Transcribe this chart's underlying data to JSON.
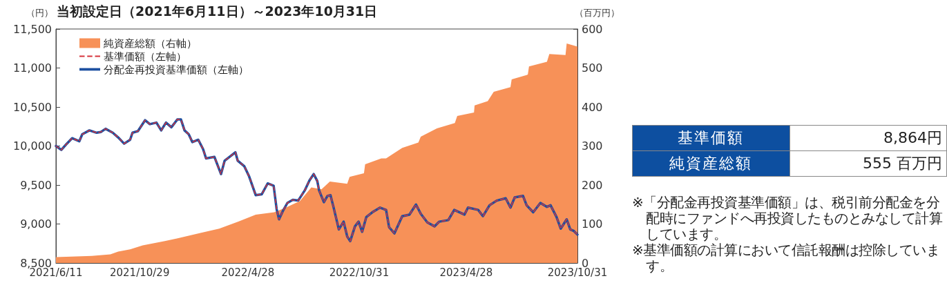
{
  "chart_data": {
    "type": "line",
    "title": "当初設定日（2021年6月11日）～2023年10月31日",
    "ylabel": "（円）",
    "y2label": "（百万円）",
    "xlim": [
      "2021-06-11",
      "2023-10-31"
    ],
    "xticks": [
      {
        "value": "2021-06-11",
        "label": "2021/6/11"
      },
      {
        "value": "2021-10-29",
        "label": "2021/10/29"
      },
      {
        "value": "2022-04-28",
        "label": "2022/4/28"
      },
      {
        "value": "2022-10-31",
        "label": "2022/10/31"
      },
      {
        "value": "2023-04-28",
        "label": "2023/4/28"
      },
      {
        "value": "2023-10-31",
        "label": "2023/10/31"
      }
    ],
    "ylim": [
      8500,
      11500
    ],
    "yticks": [
      {
        "value": 8500,
        "label": "8,500"
      },
      {
        "value": 9000,
        "label": "9,000"
      },
      {
        "value": 9500,
        "label": "9,500"
      },
      {
        "value": 10000,
        "label": "10,000"
      },
      {
        "value": 10500,
        "label": "10,500"
      },
      {
        "value": 11000,
        "label": "11,000"
      },
      {
        "value": 11500,
        "label": "11,500"
      }
    ],
    "y2lim": [
      0,
      600
    ],
    "y2ticks": [
      0,
      100,
      200,
      300,
      400,
      500,
      600
    ],
    "grid": false,
    "legend": "top left",
    "marker": "none",
    "series": [
      {
        "name": "純資産総額（右軸）",
        "type": "area",
        "axis": "y2",
        "color": "#f79158",
        "x": [
          "2021-06-11",
          "2021-08-10",
          "2021-09-10",
          "2021-09-23",
          "2021-10-13",
          "2021-11-03",
          "2021-12-10",
          "2022-01-14",
          "2022-02-10",
          "2022-03-11",
          "2022-04-12",
          "2022-05-11",
          "2022-06-11",
          "2022-06-29",
          "2022-07-24",
          "2022-08-12",
          "2022-08-29",
          "2022-09-12",
          "2022-10-11",
          "2022-10-15",
          "2022-11-08",
          "2022-11-10",
          "2022-12-07",
          "2022-12-15",
          "2023-01-11",
          "2023-02-07",
          "2023-02-11",
          "2023-03-10",
          "2023-04-09",
          "2023-04-13",
          "2023-05-11",
          "2023-05-12",
          "2023-06-03",
          "2023-06-13",
          "2023-07-11",
          "2023-07-13",
          "2023-08-09",
          "2023-08-11",
          "2023-09-10",
          "2023-09-14",
          "2023-10-11",
          "2023-10-13",
          "2023-10-31"
        ],
        "values": [
          15,
          18,
          22,
          29,
          35,
          45,
          56,
          68,
          78,
          88,
          106,
          124,
          130,
          141,
          159,
          194,
          189,
          209,
          203,
          221,
          230,
          253,
          268,
          268,
          295,
          309,
          324,
          345,
          359,
          377,
          386,
          404,
          415,
          439,
          451,
          471,
          483,
          504,
          516,
          536,
          533,
          563,
          555
        ]
      },
      {
        "name": "基準価額（左軸）",
        "line_style": "dashed",
        "color": "#d6333b",
        "x": [
          "2021-06-11",
          "2021-06-20",
          "2021-06-28",
          "2021-07-08",
          "2021-07-20",
          "2021-07-25",
          "2021-08-06",
          "2021-08-18",
          "2021-08-25",
          "2021-09-02",
          "2021-09-14",
          "2021-09-23",
          "2021-10-03",
          "2021-10-13",
          "2021-10-17",
          "2021-10-26",
          "2021-11-07",
          "2021-11-15",
          "2021-11-26",
          "2021-12-04",
          "2021-12-12",
          "2021-12-21",
          "2021-12-31",
          "2022-01-06",
          "2022-01-12",
          "2022-01-19",
          "2022-01-25",
          "2022-02-04",
          "2022-02-12",
          "2022-02-17",
          "2022-03-03",
          "2022-03-14",
          "2022-03-20",
          "2022-03-30",
          "2022-04-07",
          "2022-04-11",
          "2022-04-22",
          "2022-04-30",
          "2022-05-11",
          "2022-05-21",
          "2022-05-31",
          "2022-06-10",
          "2022-06-15",
          "2022-06-19",
          "2022-06-25",
          "2022-07-03",
          "2022-07-12",
          "2022-07-21",
          "2022-08-01",
          "2022-08-09",
          "2022-08-16",
          "2022-08-22",
          "2022-08-25",
          "2022-09-02",
          "2022-09-08",
          "2022-09-13",
          "2022-09-18",
          "2022-09-27",
          "2022-10-05",
          "2022-10-11",
          "2022-10-16",
          "2022-10-24",
          "2022-10-30",
          "2022-11-05",
          "2022-11-12",
          "2022-11-22",
          "2022-12-05",
          "2022-12-15",
          "2022-12-20",
          "2022-12-29",
          "2023-01-11",
          "2023-01-23",
          "2023-02-03",
          "2023-02-11",
          "2023-02-22",
          "2023-03-06",
          "2023-03-14",
          "2023-03-29",
          "2023-04-08",
          "2023-04-25",
          "2023-05-01",
          "2023-05-18",
          "2023-05-26",
          "2023-06-06",
          "2023-06-18",
          "2023-07-03",
          "2023-07-11",
          "2023-07-18",
          "2023-08-01",
          "2023-08-07",
          "2023-08-18",
          "2023-08-30",
          "2023-09-10",
          "2023-09-16",
          "2023-09-26",
          "2023-10-03",
          "2023-10-13",
          "2023-10-19",
          "2023-10-25",
          "2023-10-31"
        ],
        "values": [
          10000,
          9950,
          10020,
          10100,
          10060,
          10150,
          10200,
          10170,
          10180,
          10220,
          10170,
          10110,
          10030,
          10080,
          10170,
          10190,
          10330,
          10280,
          10300,
          10200,
          10300,
          10240,
          10340,
          10340,
          10200,
          10150,
          10050,
          10080,
          9960,
          9840,
          9860,
          9640,
          9810,
          9870,
          9920,
          9810,
          9740,
          9610,
          9370,
          9380,
          9520,
          9490,
          9190,
          9060,
          9160,
          9270,
          9310,
          9300,
          9430,
          9560,
          9640,
          9550,
          9430,
          9280,
          9360,
          9370,
          9220,
          8930,
          9030,
          8840,
          8780,
          8970,
          9030,
          8900,
          9090,
          9150,
          9210,
          9180,
          8960,
          8880,
          9100,
          9120,
          9250,
          9130,
          9020,
          8970,
          9030,
          9050,
          9180,
          9120,
          9210,
          9180,
          9100,
          9240,
          9300,
          9330,
          9210,
          9340,
          9360,
          9240,
          9150,
          9270,
          9220,
          9240,
          9090,
          8940,
          9060,
          8930,
          8910,
          8864
        ]
      },
      {
        "name": "分配金再投資基準価額（左軸）",
        "line_style": "solid",
        "color": "#1c4fa0",
        "x": [
          "2021-06-11",
          "2021-06-20",
          "2021-06-28",
          "2021-07-08",
          "2021-07-20",
          "2021-07-25",
          "2021-08-06",
          "2021-08-18",
          "2021-08-25",
          "2021-09-02",
          "2021-09-14",
          "2021-09-23",
          "2021-10-03",
          "2021-10-13",
          "2021-10-17",
          "2021-10-26",
          "2021-11-07",
          "2021-11-15",
          "2021-11-26",
          "2021-12-04",
          "2021-12-12",
          "2021-12-21",
          "2021-12-31",
          "2022-01-06",
          "2022-01-12",
          "2022-01-19",
          "2022-01-25",
          "2022-02-04",
          "2022-02-12",
          "2022-02-17",
          "2022-03-03",
          "2022-03-14",
          "2022-03-20",
          "2022-03-30",
          "2022-04-07",
          "2022-04-11",
          "2022-04-22",
          "2022-04-30",
          "2022-05-11",
          "2022-05-21",
          "2022-05-31",
          "2022-06-10",
          "2022-06-15",
          "2022-06-19",
          "2022-06-25",
          "2022-07-03",
          "2022-07-12",
          "2022-07-21",
          "2022-08-01",
          "2022-08-09",
          "2022-08-16",
          "2022-08-22",
          "2022-08-25",
          "2022-09-02",
          "2022-09-08",
          "2022-09-13",
          "2022-09-18",
          "2022-09-27",
          "2022-10-05",
          "2022-10-11",
          "2022-10-16",
          "2022-10-24",
          "2022-10-30",
          "2022-11-05",
          "2022-11-12",
          "2022-11-22",
          "2022-12-05",
          "2022-12-15",
          "2022-12-20",
          "2022-12-29",
          "2023-01-11",
          "2023-01-23",
          "2023-02-03",
          "2023-02-11",
          "2023-02-22",
          "2023-03-06",
          "2023-03-14",
          "2023-03-29",
          "2023-04-08",
          "2023-04-25",
          "2023-05-01",
          "2023-05-18",
          "2023-05-26",
          "2023-06-06",
          "2023-06-18",
          "2023-07-03",
          "2023-07-11",
          "2023-07-18",
          "2023-08-01",
          "2023-08-07",
          "2023-08-18",
          "2023-08-30",
          "2023-09-10",
          "2023-09-16",
          "2023-09-26",
          "2023-10-03",
          "2023-10-13",
          "2023-10-19",
          "2023-10-25",
          "2023-10-31"
        ],
        "values": [
          10000,
          9950,
          10020,
          10100,
          10060,
          10150,
          10200,
          10170,
          10180,
          10220,
          10170,
          10110,
          10030,
          10080,
          10170,
          10190,
          10330,
          10280,
          10300,
          10200,
          10300,
          10240,
          10340,
          10340,
          10200,
          10150,
          10050,
          10080,
          9960,
          9840,
          9860,
          9640,
          9810,
          9870,
          9920,
          9810,
          9740,
          9610,
          9370,
          9380,
          9520,
          9490,
          9190,
          9060,
          9160,
          9270,
          9310,
          9300,
          9430,
          9560,
          9640,
          9550,
          9430,
          9280,
          9360,
          9370,
          9220,
          8930,
          9030,
          8840,
          8780,
          8970,
          9030,
          8900,
          9090,
          9150,
          9210,
          9180,
          8960,
          8880,
          9100,
          9120,
          9250,
          9130,
          9020,
          8970,
          9030,
          9050,
          9180,
          9120,
          9210,
          9180,
          9100,
          9240,
          9300,
          9330,
          9210,
          9340,
          9360,
          9240,
          9150,
          9270,
          9220,
          9240,
          9090,
          8940,
          9060,
          8930,
          8910,
          8864
        ]
      }
    ],
    "annotations": [
      "基準価額",
      "8,864円",
      "純資産総額",
      "555 百万円",
      "※「分配金再投資基準価額」は、税引前分配金を分配時にファンドへ再投資したものとみなして計算しています。",
      "※基準価額の計算において信託報酬は控除しています。"
    ]
  }
}
